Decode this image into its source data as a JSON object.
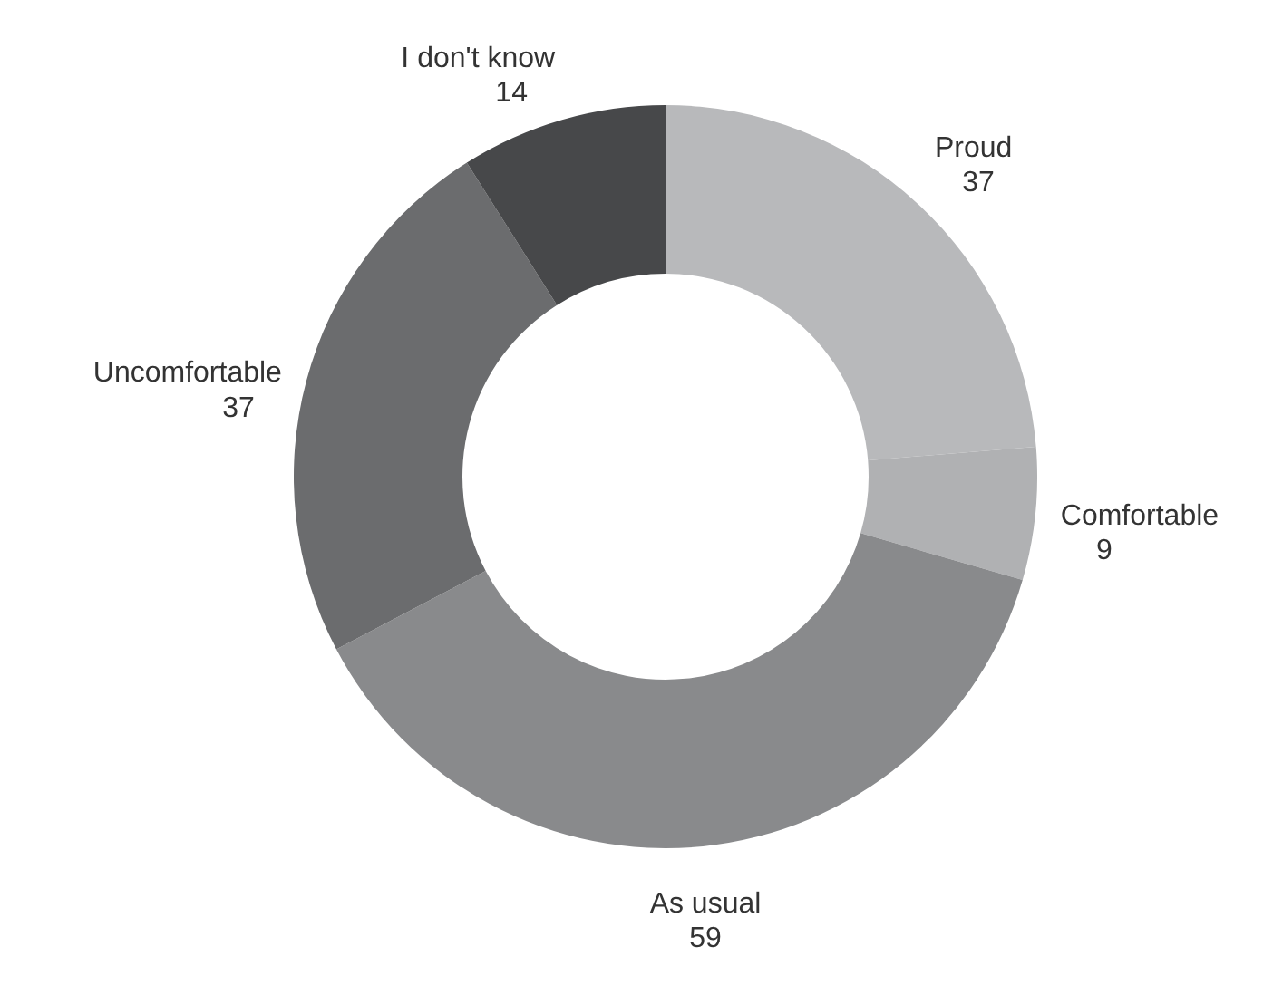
{
  "chart_data": {
    "type": "donut",
    "categories": [
      "Proud",
      "Comfortable",
      "As usual",
      "Uncomfortable",
      "I don't know"
    ],
    "values": [
      37,
      9,
      59,
      37,
      14
    ],
    "colors": [
      "#b8b9bb",
      "#b0b1b3",
      "#898a8c",
      "#6b6c6e",
      "#47484a"
    ],
    "data_labels": true,
    "legend": false
  }
}
